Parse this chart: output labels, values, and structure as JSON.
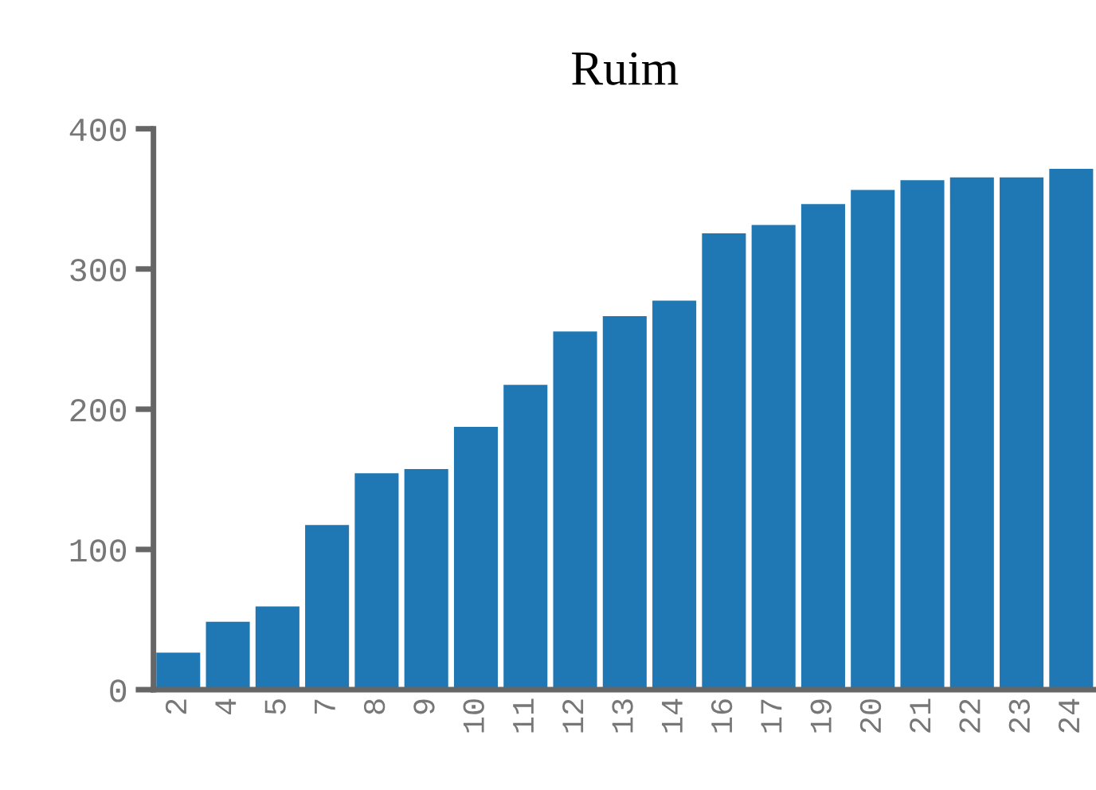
{
  "chart_data": {
    "type": "bar",
    "title": "Ruim",
    "categories": [
      "2",
      "4",
      "5",
      "7",
      "8",
      "9",
      "10",
      "11",
      "12",
      "13",
      "14",
      "16",
      "17",
      "19",
      "20",
      "21",
      "22",
      "23",
      "24"
    ],
    "values": [
      27,
      49,
      60,
      118,
      155,
      158,
      188,
      218,
      256,
      267,
      278,
      326,
      332,
      347,
      357,
      364,
      366,
      366,
      372
    ],
    "color": "#1f77b4",
    "ylim": [
      0,
      400
    ],
    "yticks": [
      0,
      100,
      200,
      300,
      400
    ],
    "grid": false
  }
}
